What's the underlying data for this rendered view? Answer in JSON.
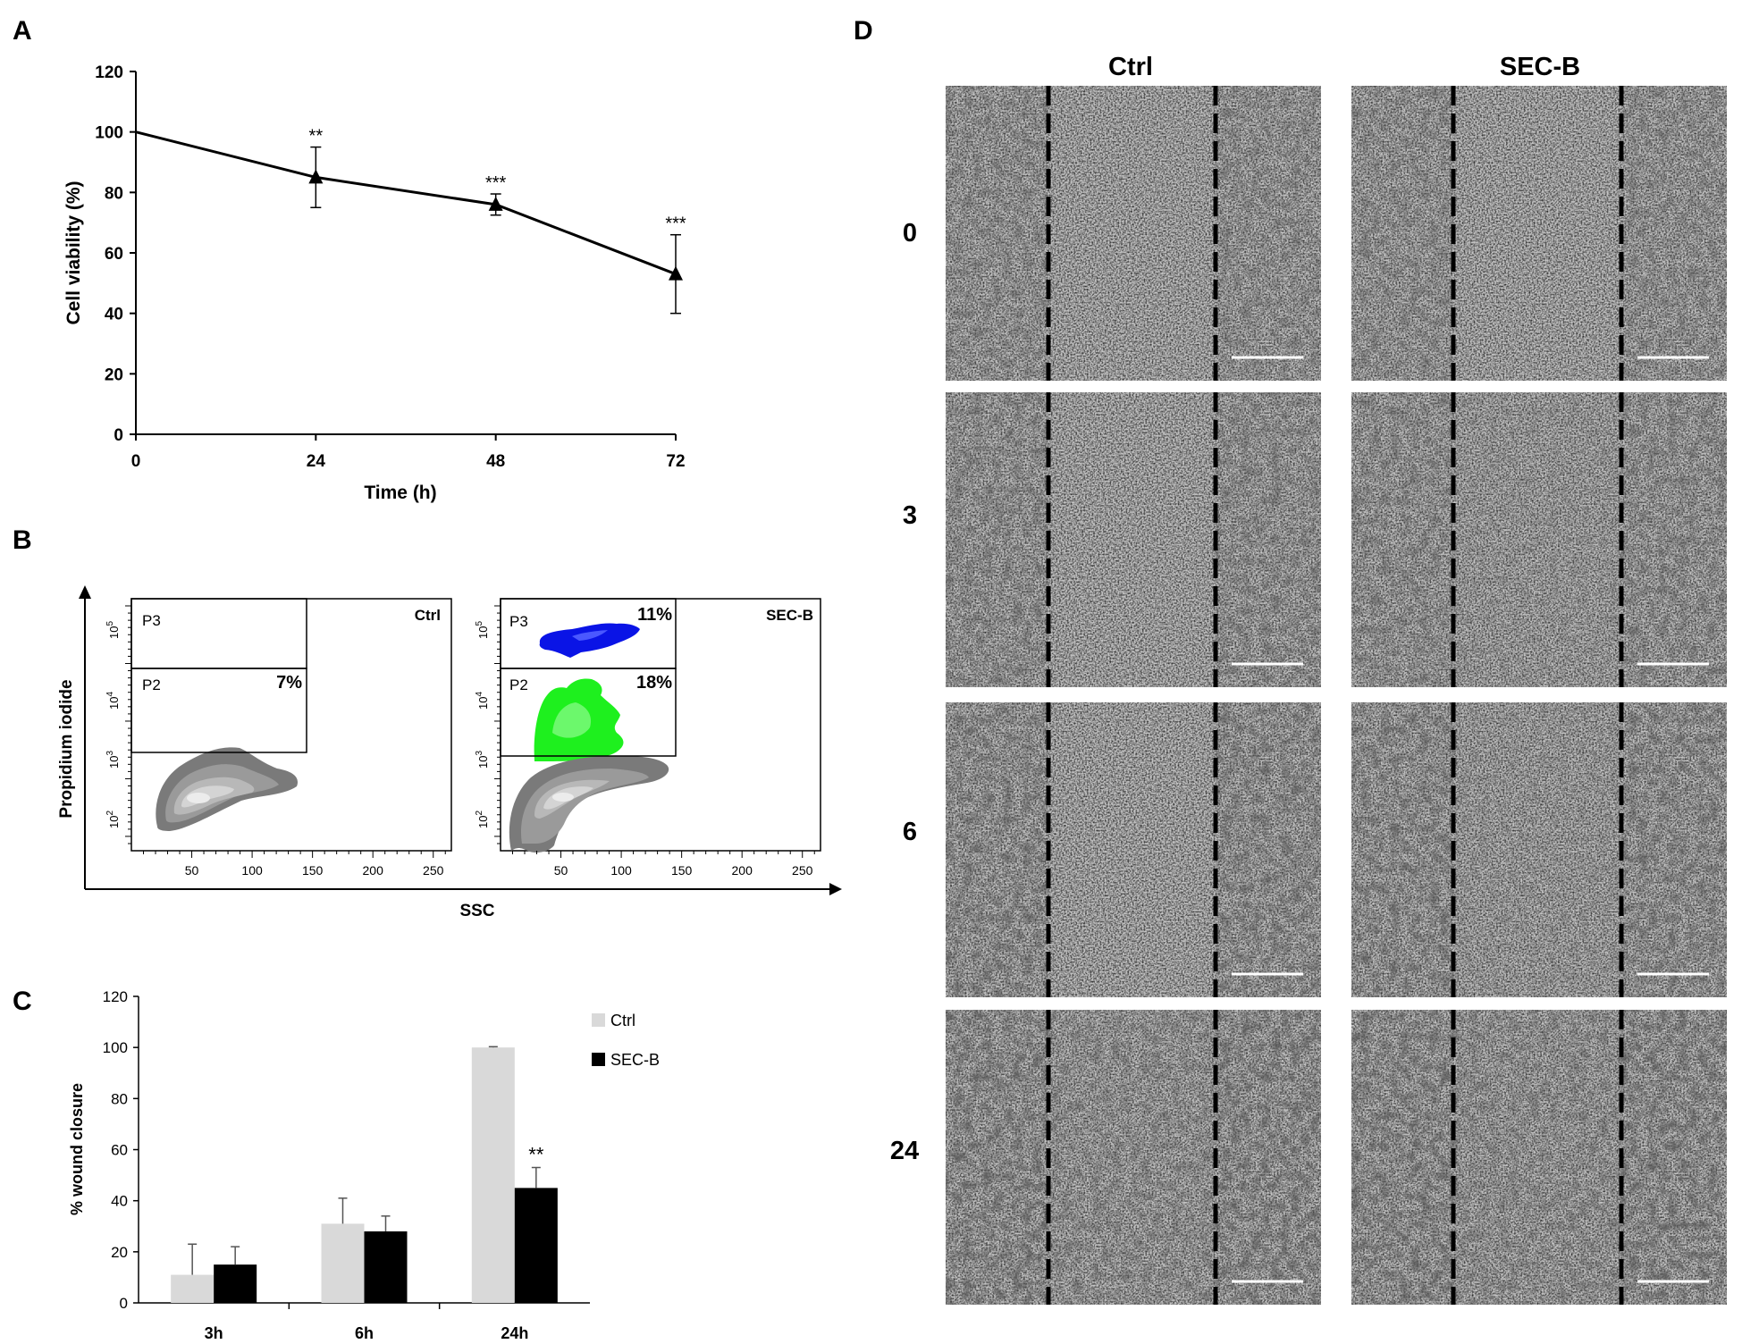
{
  "panels": {
    "A": "A",
    "B": "B",
    "C": "C",
    "D": "D"
  },
  "chart_data": [
    {
      "panel": "A",
      "type": "line",
      "x": [
        0,
        24,
        48,
        72
      ],
      "y": [
        100,
        85,
        76,
        53
      ],
      "error": [
        0,
        10,
        3.5,
        13
      ],
      "significance": [
        "",
        "**",
        "***",
        "***"
      ],
      "marker": "triangle",
      "xticks": [
        0,
        24,
        48,
        72
      ],
      "yticks": [
        0,
        20,
        40,
        60,
        80,
        100,
        120
      ],
      "xlim": [
        0,
        72
      ],
      "ylim": [
        0,
        120
      ],
      "xlabel": "Time (h)",
      "ylabel": "Cell viability (%)",
      "title": ""
    },
    {
      "panel": "B",
      "type": "scatter",
      "subtype": "flow cytometry density plot",
      "xlabel": "SSC",
      "ylabel": "Propidium iodide",
      "xticks": [
        50,
        100,
        150,
        200,
        250
      ],
      "yticks": [
        "10^2",
        "10^3",
        "10^4",
        "10^5"
      ],
      "plots": [
        {
          "name": "Ctrl",
          "gates": [
            {
              "name": "P3",
              "percent": ""
            },
            {
              "name": "P2",
              "percent": "7%"
            }
          ]
        },
        {
          "name": "SEC-B",
          "gates": [
            {
              "name": "P3",
              "percent": "11%",
              "color": "#0a14e6"
            },
            {
              "name": "P2",
              "percent": "18%",
              "color": "#1ef01e"
            }
          ]
        }
      ]
    },
    {
      "panel": "C",
      "type": "bar",
      "categories": [
        "3h",
        "6h",
        "24h"
      ],
      "series": [
        {
          "name": "Ctrl",
          "color": "#d9d9d9",
          "values": [
            11,
            31,
            100
          ],
          "errors": [
            12,
            10,
            0.3
          ]
        },
        {
          "name": "SEC-B",
          "color": "#000000",
          "values": [
            15,
            28,
            45
          ],
          "errors": [
            7,
            6,
            8
          ]
        }
      ],
      "significance": [
        {
          "category": "24h",
          "series": "SEC-B",
          "label": "**"
        }
      ],
      "yticks": [
        0,
        20,
        40,
        60,
        80,
        100,
        120
      ],
      "ylim": [
        0,
        120
      ],
      "ylabel": "% wound closure",
      "xlabel": "",
      "legend": "top-right",
      "title": ""
    },
    {
      "panel": "D",
      "type": "image-grid",
      "columns": [
        "Ctrl",
        "SEC-B"
      ],
      "rows": [
        "0",
        "3",
        "6",
        "24"
      ]
    }
  ],
  "colors": {
    "axis": "#000000",
    "density_levels": [
      "#7a7a7a",
      "#9a9a9a",
      "#b8b8b8",
      "#d4d4d4",
      "#ececec"
    ],
    "micro_background": "#c4c4c4",
    "wound_line": "#000000",
    "scale_bar": "#ffffff"
  }
}
